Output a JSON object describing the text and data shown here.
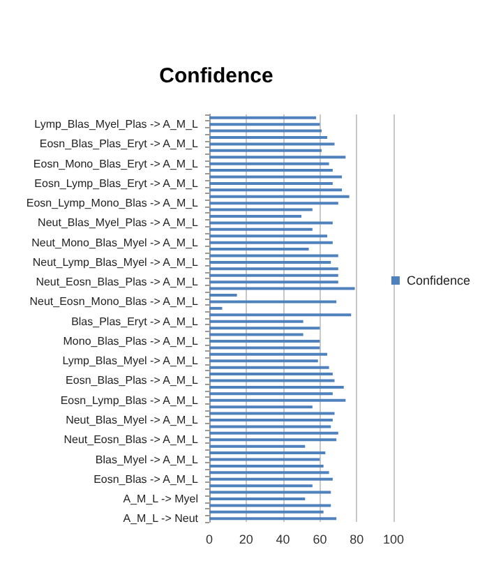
{
  "chart_data": {
    "type": "bar",
    "orientation": "horizontal",
    "title": "Confidence",
    "categories": [
      null,
      "Lymp_Blas_Myel_Plas -> A_M_L",
      null,
      null,
      "Eosn_Blas_Plas_Eryt -> A_M_L",
      null,
      null,
      "Eosn_Mono_Blas_Eryt -> A_M_L",
      null,
      null,
      "Eosn_Lymp_Blas_Eryt -> A_M_L",
      null,
      null,
      "Eosn_Lymp_Mono_Blas -> A_M_L",
      null,
      null,
      "Neut_Blas_Myel_Plas -> A_M_L",
      null,
      null,
      "Neut_Mono_Blas_Myel -> A_M_L",
      null,
      null,
      "Neut_Lymp_Blas_Myel -> A_M_L",
      null,
      null,
      "Neut_Eosn_Blas_Plas -> A_M_L",
      null,
      null,
      "Neut_Eosn_Mono_Blas -> A_M_L",
      null,
      null,
      "Blas_Plas_Eryt -> A_M_L",
      null,
      null,
      "Mono_Blas_Plas -> A_M_L",
      null,
      null,
      "Lymp_Blas_Myel -> A_M_L",
      null,
      null,
      "Eosn_Blas_Plas -> A_M_L",
      null,
      null,
      "Eosn_Lymp_Blas -> A_M_L",
      null,
      null,
      "Neut_Blas_Myel -> A_M_L",
      null,
      null,
      "Neut_Eosn_Blas -> A_M_L",
      null,
      null,
      "Blas_Myel -> A_M_L",
      null,
      null,
      "Eosn_Blas -> A_M_L",
      null,
      null,
      "A_M_L -> Myel",
      null,
      null,
      "A_M_L -> Neut"
    ],
    "series": [
      {
        "name": "Confidence",
        "color": "#4f81bd",
        "values": [
          58,
          60,
          61,
          64,
          68,
          61,
          74,
          65,
          67,
          72,
          67,
          72,
          76,
          70,
          56,
          50,
          67,
          56,
          64,
          67,
          54,
          70,
          66,
          70,
          70,
          70,
          79,
          15,
          69,
          7,
          77,
          51,
          60,
          51,
          60,
          60,
          64,
          59,
          65,
          67,
          68,
          73,
          67,
          74,
          56,
          68,
          67,
          66,
          70,
          69,
          52,
          63,
          60,
          62,
          65,
          67,
          56,
          66,
          52,
          66,
          62,
          69
        ]
      }
    ],
    "xlim": [
      0,
      100
    ],
    "xticks": [
      0,
      20,
      40,
      60,
      80,
      100
    ],
    "grid": "x",
    "legend": "right"
  }
}
